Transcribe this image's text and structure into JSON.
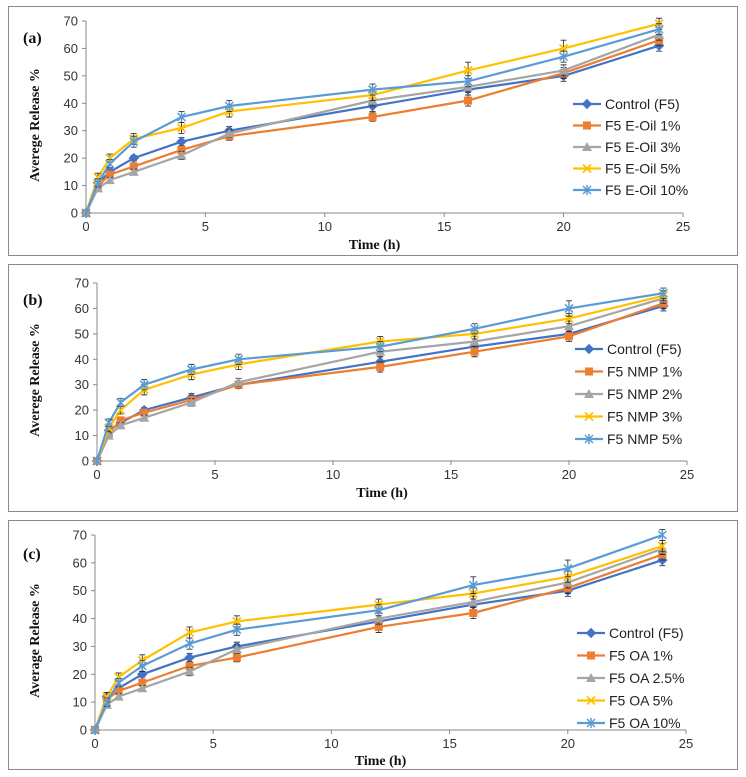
{
  "chart_data": [
    {
      "type": "line",
      "panel_label": "(a)",
      "xlabel": "Time (h)",
      "ylabel": "Averege Release %",
      "xlim": [
        0,
        25
      ],
      "ylim": [
        0,
        70
      ],
      "xticks": [
        0,
        5,
        10,
        15,
        20,
        25
      ],
      "yticks": [
        0,
        10,
        20,
        30,
        40,
        50,
        60,
        70
      ],
      "grid": false,
      "legend_position": "right",
      "x": [
        0,
        0.5,
        1,
        2,
        4,
        6,
        12,
        16,
        20,
        24
      ],
      "series": [
        {
          "name": "Control (F5)",
          "color": "#4472C4",
          "marker": "diamond",
          "values": [
            0,
            11,
            15,
            20,
            26,
            30,
            39,
            45,
            50,
            61
          ],
          "errors": [
            0,
            1,
            1,
            1,
            1.5,
            1.5,
            2,
            2,
            2,
            2
          ]
        },
        {
          "name": "F5 E-Oil 1%",
          "color": "#ED7D31",
          "marker": "square",
          "values": [
            0,
            10,
            14,
            17,
            23,
            28,
            35,
            41,
            51,
            63
          ],
          "errors": [
            0,
            1,
            1,
            1,
            1.5,
            1.5,
            1.5,
            2,
            2,
            2
          ]
        },
        {
          "name": "F5 E-Oil 3%",
          "color": "#A5A5A5",
          "marker": "triangle",
          "values": [
            0,
            9,
            12,
            15,
            21,
            29,
            41,
            46,
            52,
            65
          ],
          "errors": [
            0,
            1,
            1,
            1,
            1.5,
            1.5,
            2,
            2,
            2,
            2
          ]
        },
        {
          "name": "F5 E-Oil 5%",
          "color": "#FFC000",
          "marker": "x",
          "values": [
            0,
            13,
            20,
            27,
            31,
            37,
            43,
            52,
            60,
            69
          ],
          "errors": [
            0,
            1.5,
            1.5,
            2,
            2,
            2,
            2,
            3,
            3,
            2
          ]
        },
        {
          "name": "F5 E-Oil 10%",
          "color": "#5B9BD5",
          "marker": "star",
          "values": [
            0,
            11,
            18,
            26,
            35,
            39,
            45,
            48,
            57,
            67
          ],
          "errors": [
            0,
            1.5,
            1.5,
            2,
            2,
            2,
            2,
            2,
            2,
            2
          ]
        }
      ]
    },
    {
      "type": "line",
      "panel_label": "(b)",
      "xlabel": "Time (h)",
      "ylabel": "Averege Release %",
      "xlim": [
        0,
        25
      ],
      "ylim": [
        0,
        70
      ],
      "xticks": [
        0,
        5,
        10,
        15,
        20,
        25
      ],
      "yticks": [
        0,
        10,
        20,
        30,
        40,
        50,
        60,
        70
      ],
      "grid": false,
      "legend_position": "right",
      "x": [
        0,
        0.5,
        1,
        2,
        4,
        6,
        12,
        16,
        20,
        24
      ],
      "series": [
        {
          "name": "Control (F5)",
          "color": "#4472C4",
          "marker": "diamond",
          "values": [
            0,
            12,
            15,
            20,
            25,
            30,
            39,
            45,
            50,
            61
          ],
          "errors": [
            0,
            1,
            1,
            1,
            1.5,
            1.5,
            2,
            2,
            2,
            2
          ]
        },
        {
          "name": "F5 NMP 1%",
          "color": "#ED7D31",
          "marker": "square",
          "values": [
            0,
            11,
            16,
            19,
            24,
            30,
            37,
            43,
            49,
            62
          ],
          "errors": [
            0,
            1,
            1,
            1,
            1.5,
            1.5,
            2,
            2,
            2,
            2
          ]
        },
        {
          "name": "F5 NMP 2%",
          "color": "#A5A5A5",
          "marker": "triangle",
          "values": [
            0,
            10,
            14,
            17,
            23,
            31,
            43,
            47,
            53,
            64
          ],
          "errors": [
            0,
            1,
            1,
            1,
            1.5,
            1.5,
            2,
            2,
            2,
            2
          ]
        },
        {
          "name": "F5 NMP 3%",
          "color": "#FFC000",
          "marker": "x",
          "values": [
            0,
            13,
            20,
            28,
            34,
            38,
            47,
            50,
            56,
            65
          ],
          "errors": [
            0,
            1.5,
            1.5,
            2,
            2,
            2,
            2,
            2,
            2,
            2
          ]
        },
        {
          "name": "F5 NMP 5%",
          "color": "#5B9BD5",
          "marker": "star",
          "values": [
            0,
            15,
            23,
            30,
            36,
            40,
            45,
            52,
            60,
            66
          ],
          "errors": [
            0,
            1.5,
            1.5,
            2,
            2,
            2,
            2,
            2,
            3,
            2
          ]
        }
      ]
    },
    {
      "type": "line",
      "panel_label": "(c)",
      "xlabel": "Time (h)",
      "ylabel": "Average Release %",
      "xlim": [
        0,
        25
      ],
      "ylim": [
        0,
        70
      ],
      "xticks": [
        0,
        5,
        10,
        15,
        20,
        25
      ],
      "yticks": [
        0,
        10,
        20,
        30,
        40,
        50,
        60,
        70
      ],
      "grid": false,
      "legend_position": "right",
      "x": [
        0,
        0.5,
        1,
        2,
        4,
        6,
        12,
        16,
        20,
        24
      ],
      "series": [
        {
          "name": "Control (F5)",
          "color": "#4472C4",
          "marker": "diamond",
          "values": [
            0,
            12,
            15,
            20,
            26,
            30,
            39,
            45,
            50,
            61
          ],
          "errors": [
            0,
            1,
            1,
            1,
            1.5,
            1.5,
            2,
            2,
            2,
            2
          ]
        },
        {
          "name": "F5 OA 1%",
          "color": "#ED7D31",
          "marker": "square",
          "values": [
            0,
            11,
            14,
            17,
            23,
            26,
            37,
            42,
            51,
            63
          ],
          "errors": [
            0,
            1,
            1,
            1,
            1.5,
            1.5,
            2,
            2,
            2,
            2
          ]
        },
        {
          "name": "F5 OA 2.5%",
          "color": "#A5A5A5",
          "marker": "triangle",
          "values": [
            0,
            9,
            12,
            15,
            21,
            29,
            40,
            46,
            53,
            65
          ],
          "errors": [
            0,
            1,
            1,
            1,
            1.5,
            1.5,
            2,
            2,
            2,
            2
          ]
        },
        {
          "name": "F5 OA 5%",
          "color": "#FFC000",
          "marker": "x",
          "values": [
            0,
            12,
            19,
            25,
            35,
            39,
            45,
            49,
            55,
            66
          ],
          "errors": [
            0,
            1.5,
            1.5,
            2,
            2,
            2,
            2,
            2,
            2,
            2
          ]
        },
        {
          "name": "F5 OA 10%",
          "color": "#5B9BD5",
          "marker": "star",
          "values": [
            0,
            10,
            17,
            23,
            31,
            36,
            43,
            52,
            58,
            70
          ],
          "errors": [
            0,
            1.5,
            1.5,
            2,
            2,
            2,
            2,
            3,
            3,
            2
          ]
        }
      ]
    }
  ]
}
